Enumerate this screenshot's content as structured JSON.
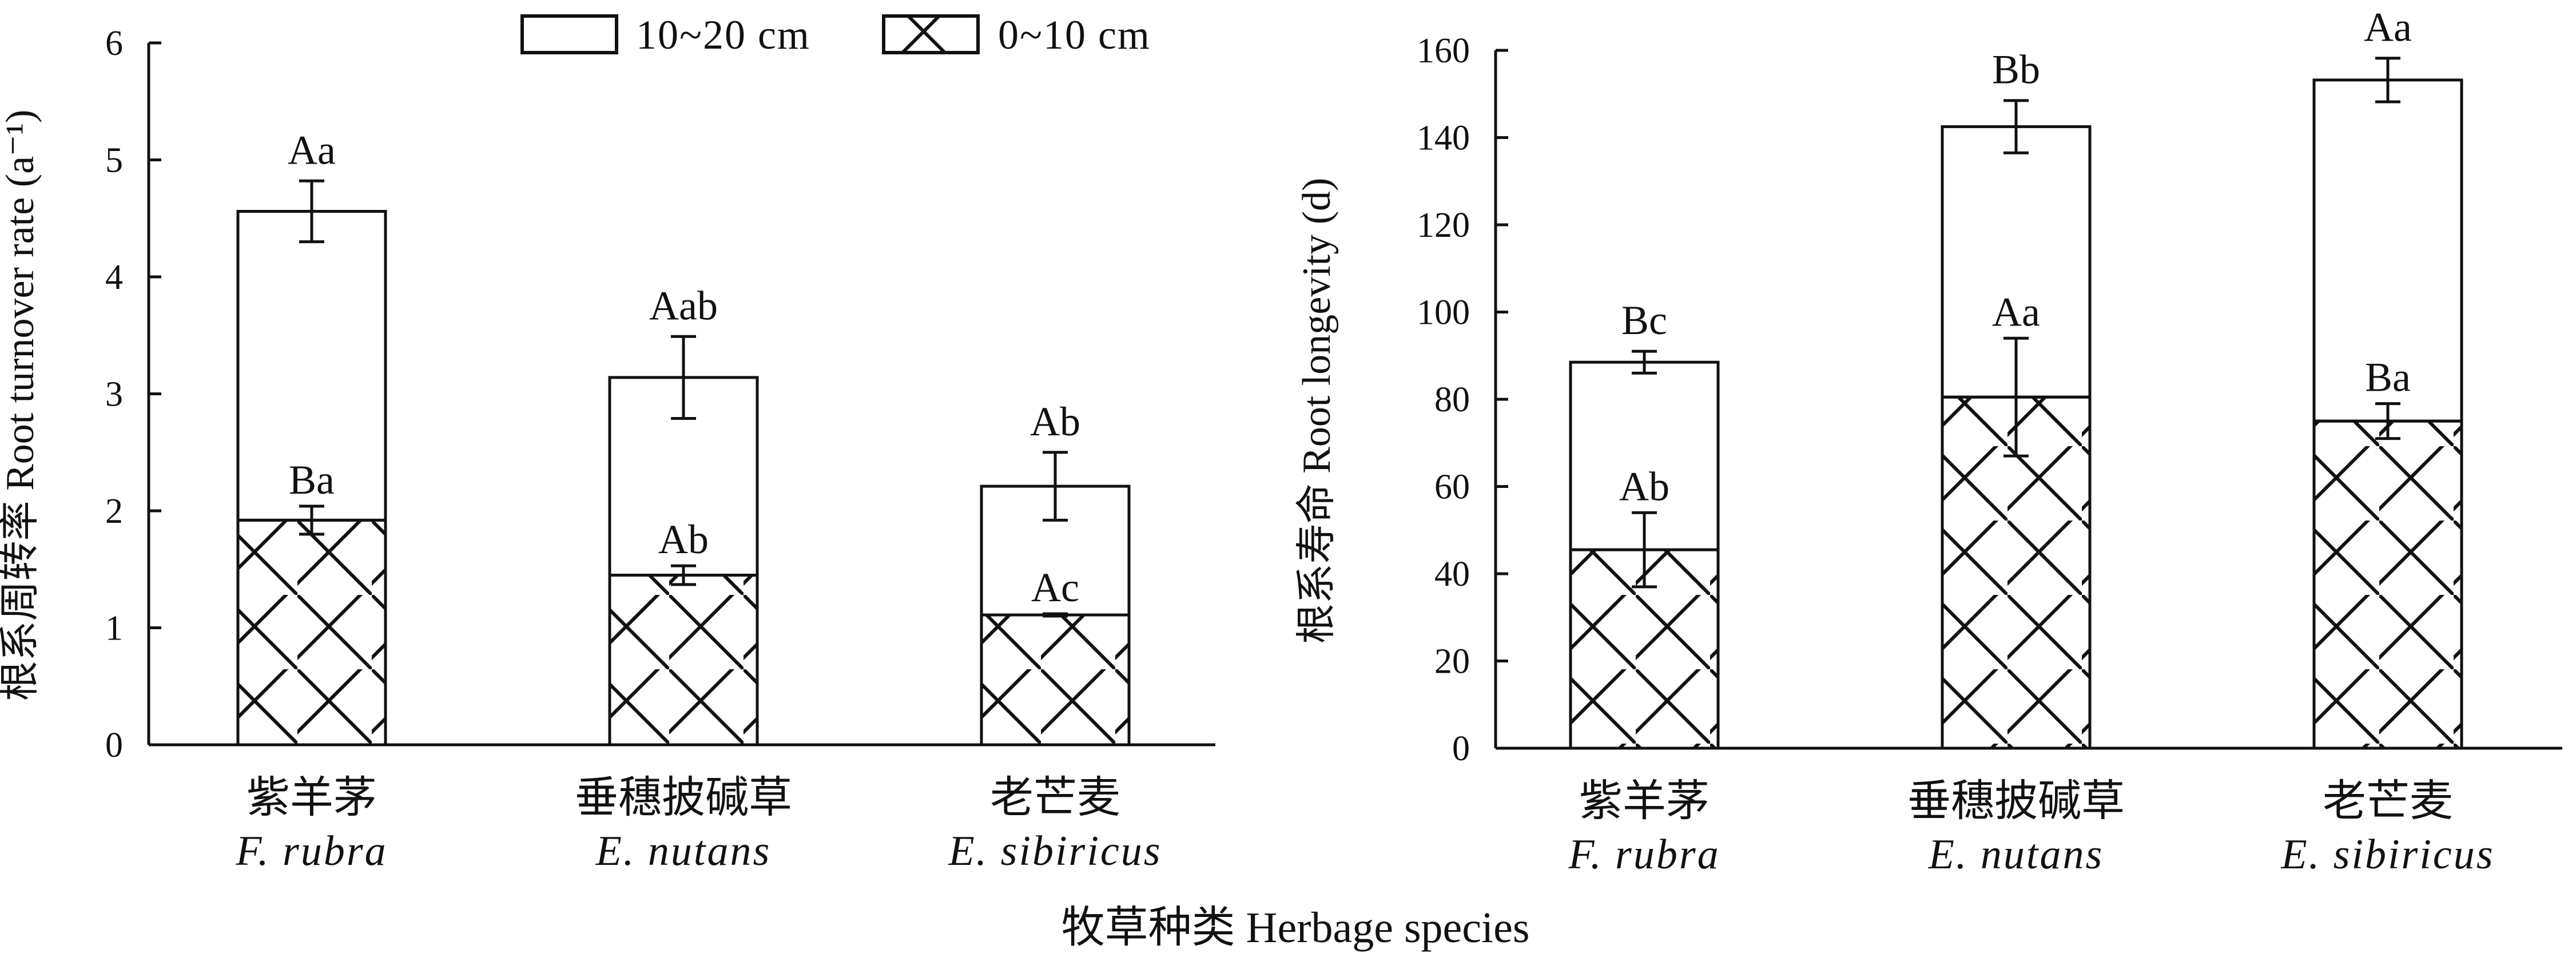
{
  "chart_data": [
    {
      "type": "bar",
      "stacked": true,
      "ylabel": "根系周转率 Root turnover rate (a⁻¹)",
      "ylim": [
        0,
        6
      ],
      "yticks": [
        0,
        1,
        2,
        3,
        4,
        5,
        6
      ],
      "categories": [
        {
          "cn": "紫羊茅",
          "en": "F. rubra"
        },
        {
          "cn": "垂穗披碱草",
          "en": "E. nutans"
        },
        {
          "cn": "老芒麦",
          "en": "E. sibiricus"
        }
      ],
      "series": [
        {
          "name": "0~10 cm",
          "pattern": "crosshatch",
          "values": [
            1.92,
            1.45,
            1.11
          ],
          "errors": [
            0.12,
            0.08,
            0.01
          ],
          "labels": [
            "Ba",
            "Ab",
            "Ac"
          ]
        },
        {
          "name": "10~20 cm",
          "pattern": "none",
          "values": [
            2.64,
            1.69,
            1.1
          ],
          "totals": [
            4.56,
            3.14,
            2.21
          ],
          "errors": [
            0.26,
            0.35,
            0.29
          ],
          "labels": [
            "Aa",
            "Aab",
            "Ab"
          ]
        }
      ]
    },
    {
      "type": "bar",
      "stacked": true,
      "ylabel": "根系寿命 Root longevity (d)",
      "ylim": [
        0,
        160
      ],
      "yticks": [
        0,
        20,
        40,
        60,
        80,
        100,
        120,
        140,
        160
      ],
      "categories": [
        {
          "cn": "紫羊茅",
          "en": "F. rubra"
        },
        {
          "cn": "垂穗披碱草",
          "en": "E. nutans"
        },
        {
          "cn": "老芒麦",
          "en": "E. sibiricus"
        }
      ],
      "series": [
        {
          "name": "0~10 cm",
          "pattern": "crosshatch",
          "values": [
            45.5,
            80.5,
            75.0
          ],
          "errors": [
            8.5,
            13.5,
            4.0
          ],
          "labels": [
            "Ab",
            "Aa",
            "Ba"
          ]
        },
        {
          "name": "10~20 cm",
          "pattern": "none",
          "values": [
            43.0,
            62.0,
            78.2
          ],
          "totals": [
            88.5,
            142.5,
            153.2
          ],
          "errors": [
            2.5,
            6.0,
            5.0
          ],
          "labels": [
            "Bc",
            "Bb",
            "Aa"
          ]
        }
      ]
    }
  ],
  "legend": {
    "items": [
      {
        "label": "10~20 cm",
        "pattern": "none"
      },
      {
        "label": "0~10 cm",
        "pattern": "crosshatch"
      }
    ],
    "placement": "top-center"
  },
  "xlabel": "牧草种类 Herbage species"
}
